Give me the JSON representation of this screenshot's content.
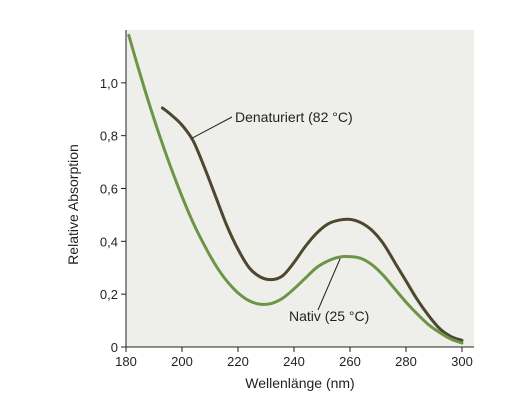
{
  "chart_data": {
    "type": "line",
    "xlabel": "Wellenlänge (nm)",
    "ylabel": "Relative Absorption",
    "xlim": [
      180,
      300
    ],
    "ylim": [
      0,
      1.2
    ],
    "x_ticks": [
      180,
      200,
      220,
      240,
      260,
      280,
      300
    ],
    "y_ticks": [
      0,
      0.2,
      0.4,
      0.6,
      0.8,
      1.0
    ],
    "y_tick_labels": [
      "0",
      "0,2",
      "0,4",
      "0,6",
      "0,8",
      "1,0"
    ],
    "grid": false,
    "background": "#eeefea",
    "series": [
      {
        "name": "Denaturiert (82 °C)",
        "color": "#4f4630",
        "x": [
          193,
          196,
          200,
          204,
          208,
          212,
          216,
          220,
          224,
          228,
          232,
          236,
          240,
          244,
          248,
          252,
          256,
          260,
          264,
          268,
          272,
          276,
          280,
          284,
          288,
          292,
          296,
          300
        ],
        "y": [
          0.905,
          0.88,
          0.84,
          0.78,
          0.68,
          0.57,
          0.46,
          0.37,
          0.3,
          0.265,
          0.255,
          0.27,
          0.32,
          0.38,
          0.43,
          0.465,
          0.48,
          0.483,
          0.47,
          0.44,
          0.39,
          0.32,
          0.25,
          0.18,
          0.12,
          0.07,
          0.04,
          0.025
        ]
      },
      {
        "name": "Nativ (25 °C)",
        "color": "#6e9446",
        "x": [
          181,
          184,
          188,
          192,
          196,
          200,
          204,
          208,
          212,
          216,
          220,
          224,
          228,
          232,
          236,
          240,
          244,
          248,
          252,
          256,
          260,
          264,
          268,
          272,
          276,
          280,
          284,
          288,
          292,
          296,
          300
        ],
        "y": [
          1.18,
          1.07,
          0.93,
          0.8,
          0.68,
          0.57,
          0.47,
          0.385,
          0.31,
          0.25,
          0.205,
          0.175,
          0.162,
          0.165,
          0.185,
          0.22,
          0.26,
          0.3,
          0.325,
          0.34,
          0.342,
          0.335,
          0.31,
          0.27,
          0.22,
          0.17,
          0.125,
          0.085,
          0.055,
          0.03,
          0.015
        ]
      }
    ],
    "annotations": [
      {
        "text": "Denaturiert (82 °C)",
        "series": 0
      },
      {
        "text": "Nativ (25 °C)",
        "series": 1
      }
    ]
  }
}
